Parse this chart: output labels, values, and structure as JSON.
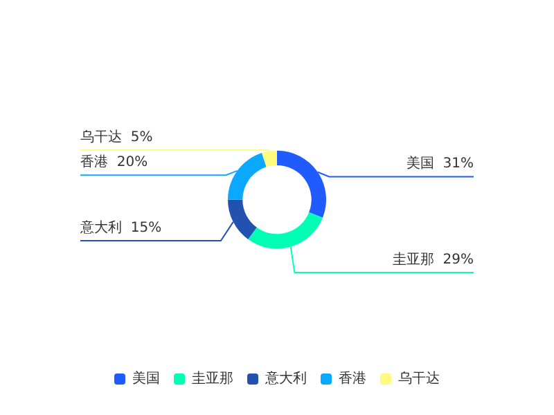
{
  "chart_data": {
    "type": "donut",
    "categories": [
      "美国",
      "圭亚那",
      "意大利",
      "香港",
      "乌干达"
    ],
    "values": [
      31,
      29,
      15,
      20,
      5
    ],
    "colors": [
      "#1f5bff",
      "#00ffb4",
      "#2251b0",
      "#0aa8ff",
      "#fffa80"
    ],
    "value_labels": [
      "31%",
      "29%",
      "15%",
      "20%",
      "5%"
    ],
    "legend": "bottom"
  }
}
